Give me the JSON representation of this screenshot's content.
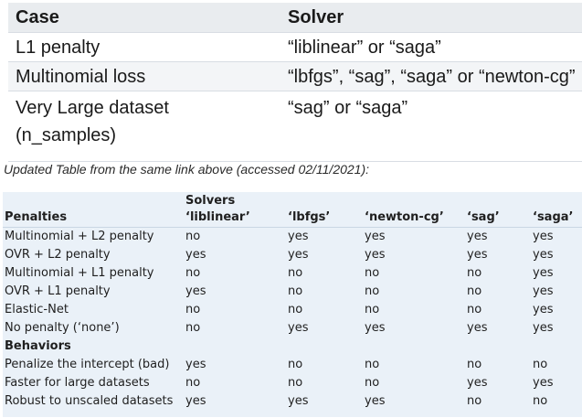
{
  "top_table": {
    "headers": [
      "Case",
      "Solver"
    ],
    "rows": [
      {
        "case": "L1 penalty",
        "solver": "“liblinear” or “saga”"
      },
      {
        "case": "Multinomial loss",
        "solver": "“lbfgs”, “sag”, “saga” or “newton-cg”"
      },
      {
        "case": "Very Large dataset\n(n_samples)",
        "solver": "“sag” or “saga”"
      }
    ]
  },
  "caption": "Updated Table from the same link above (accessed 02/11/2021):",
  "bottom_table": {
    "group_header": "Solvers",
    "penalties_header": "Penalties",
    "solvers": [
      "‘liblinear’",
      "‘lbfgs’",
      "‘newton-cg’",
      "‘sag’",
      "‘saga’"
    ],
    "penalty_rows": [
      {
        "label": "Multinomial + L2 penalty",
        "values": [
          "no",
          "yes",
          "yes",
          "yes",
          "yes"
        ]
      },
      {
        "label": "OVR + L2 penalty",
        "values": [
          "yes",
          "yes",
          "yes",
          "yes",
          "yes"
        ]
      },
      {
        "label": "Multinomial + L1 penalty",
        "values": [
          "no",
          "no",
          "no",
          "no",
          "yes"
        ]
      },
      {
        "label": "OVR + L1 penalty",
        "values": [
          "yes",
          "no",
          "no",
          "no",
          "yes"
        ]
      },
      {
        "label": "Elastic-Net",
        "values": [
          "no",
          "no",
          "no",
          "no",
          "yes"
        ]
      },
      {
        "label": "No penalty (‘none’)",
        "values": [
          "no",
          "yes",
          "yes",
          "yes",
          "yes"
        ]
      }
    ],
    "behaviors_header": "Behaviors",
    "behavior_rows": [
      {
        "label": "Penalize the intercept (bad)",
        "values": [
          "yes",
          "no",
          "no",
          "no",
          "no"
        ]
      },
      {
        "label": "Faster for large datasets",
        "values": [
          "no",
          "no",
          "no",
          "yes",
          "yes"
        ]
      },
      {
        "label": "Robust to unscaled datasets",
        "values": [
          "yes",
          "yes",
          "yes",
          "no",
          "no"
        ]
      }
    ]
  }
}
